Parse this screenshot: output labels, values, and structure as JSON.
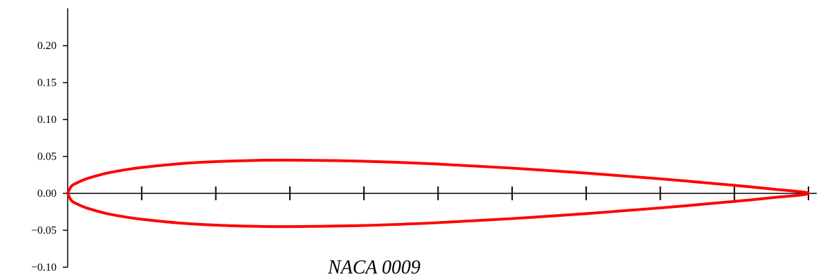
{
  "chart_data": {
    "type": "line",
    "title": "NACA 0009",
    "xlabel": "",
    "ylabel": "",
    "xlim": [
      0,
      1
    ],
    "ylim": [
      -0.1,
      0.24
    ],
    "grid": false,
    "legend": "none",
    "y_ticks": [
      {
        "value": 0.2,
        "label": "0.20"
      },
      {
        "value": 0.15,
        "label": "0.15"
      },
      {
        "value": 0.1,
        "label": "0.10"
      },
      {
        "value": 0.05,
        "label": "0.05"
      },
      {
        "value": 0.0,
        "label": "0.00"
      },
      {
        "value": -0.05,
        "label": "−0.05"
      },
      {
        "value": -0.1,
        "label": "−0.10"
      }
    ],
    "x_ticks": [
      0.1,
      0.2,
      0.3,
      0.4,
      0.5,
      0.6,
      0.7,
      0.8,
      0.9
    ],
    "series": [
      {
        "color": "#ff0000",
        "x": [
          0,
          0.005,
          0.0125,
          0.025,
          0.05,
          0.075,
          0.1,
          0.15,
          0.2,
          0.25,
          0.3,
          0.4,
          0.5,
          0.6,
          0.7,
          0.8,
          0.9,
          0.95,
          1.0,
          0.95,
          0.9,
          0.8,
          0.7,
          0.6,
          0.5,
          0.4,
          0.3,
          0.25,
          0.2,
          0.15,
          0.1,
          0.075,
          0.05,
          0.025,
          0.0125,
          0.005,
          0
        ],
        "y": [
          0,
          0.0097,
          0.0142,
          0.0196,
          0.0267,
          0.0315,
          0.0351,
          0.0401,
          0.043,
          0.0446,
          0.045,
          0.0435,
          0.0397,
          0.0342,
          0.0275,
          0.0197,
          0.0109,
          0.006,
          0.0,
          -0.006,
          -0.0109,
          -0.0197,
          -0.0275,
          -0.0342,
          -0.0397,
          -0.0435,
          -0.045,
          -0.0446,
          -0.043,
          -0.0401,
          -0.0351,
          -0.0315,
          -0.0267,
          -0.0196,
          -0.0142,
          -0.0097,
          0
        ]
      }
    ]
  }
}
